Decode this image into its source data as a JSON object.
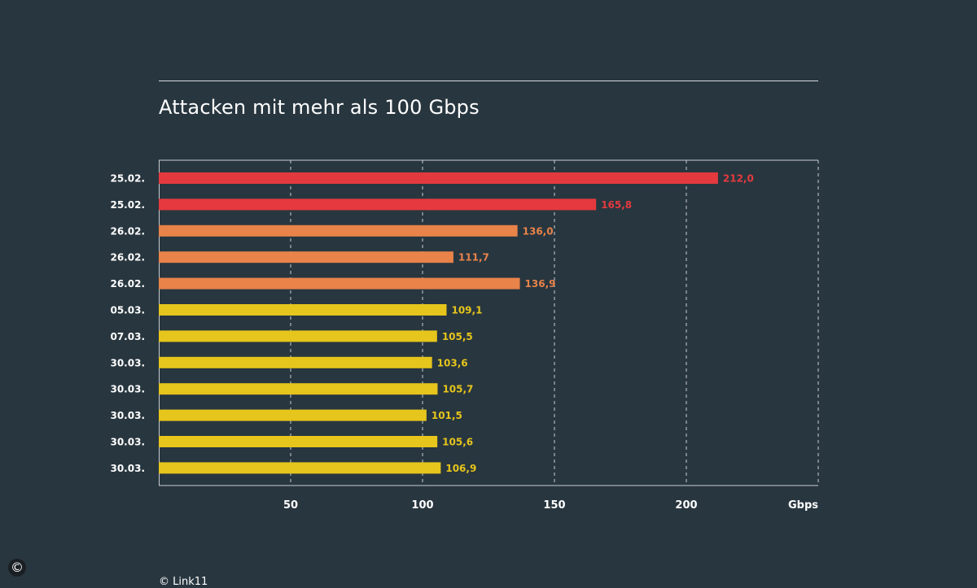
{
  "credit": "© Link11",
  "copyright_icon": "©",
  "colors": {
    "background": "#28363f",
    "red": "#e43a3f",
    "orange": "#e8834a",
    "yellow": "#e6c51c",
    "text": "#ffffff",
    "grid": "#c9ced2"
  },
  "chart_data": {
    "type": "bar",
    "orientation": "horizontal",
    "title": "Attacken mit mehr als 100 Gbps",
    "xlabel": "Gbps",
    "ylabel": "",
    "xlim": [
      0,
      250
    ],
    "xticks": [
      50,
      100,
      150,
      200
    ],
    "xtick_labels": [
      "50",
      "100",
      "150",
      "200"
    ],
    "grid": "vertical dashed",
    "categories": [
      "25.02.",
      "25.02.",
      "26.02.",
      "26.02.",
      "26.02.",
      "05.03.",
      "07.03.",
      "30.03.",
      "30.03.",
      "30.03.",
      "30.03.",
      "30.03."
    ],
    "values": [
      212.0,
      165.8,
      136.0,
      111.7,
      136.9,
      109.1,
      105.5,
      103.6,
      105.7,
      101.5,
      105.6,
      106.9
    ],
    "value_labels": [
      "212,0",
      "165,8",
      "136,0",
      "111,7",
      "136,9",
      "109,1",
      "105,5",
      "103,6",
      "105,7",
      "101,5",
      "105,6",
      "106,9"
    ],
    "bar_colors": [
      "red",
      "red",
      "orange",
      "orange",
      "orange",
      "yellow",
      "yellow",
      "yellow",
      "yellow",
      "yellow",
      "yellow",
      "yellow"
    ]
  }
}
